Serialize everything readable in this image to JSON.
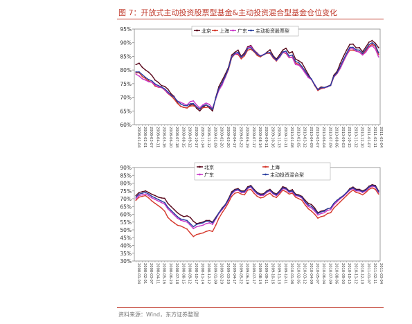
{
  "figure": {
    "title": "图 7：开放式主动投资股票型基金&主动投资混合型基金仓位变化",
    "source": "资料来源：Wind，东方证券整理"
  },
  "dates": [
    "2008-01-04",
    "2008-01-18",
    "2008-02-01",
    "2008-02-15",
    "2008-03-07",
    "2008-03-21",
    "2008-04-11",
    "2008-04-25",
    "2008-05-16",
    "2008-05-30",
    "2008-06-20",
    "2008-07-04",
    "2008-07-18",
    "2008-08-01",
    "2008-08-15",
    "2008-08-29",
    "2008-09-12",
    "2008-09-26",
    "2008-10-17",
    "2008-10-31",
    "2008-11-14",
    "2008-11-28",
    "2008-12-12",
    "2008-12-26",
    "2009-01-09",
    "2009-02-06",
    "2009-02-20",
    "2009-03-06",
    "2009-03-20",
    "2009-04-03",
    "2009-04-17",
    "2009-05-08",
    "2009-05-22",
    "2009-06-05",
    "2009-06-19",
    "2009-07-03",
    "2009-07-17",
    "2009-07-31",
    "2009-08-14",
    "2009-08-28",
    "2009-09-11",
    "2009-09-25",
    "2009-10-16",
    "2009-10-30",
    "2009-11-13",
    "2009-11-27",
    "2009-12-11",
    "2009-12-25",
    "2010-01-08",
    "2010-01-22",
    "2010-02-05",
    "2010-02-26",
    "2010-03-12",
    "2010-03-26",
    "2010-04-09",
    "2010-04-23",
    "2010-05-07",
    "2010-05-21",
    "2010-06-04",
    "2010-06-25",
    "2010-07-09",
    "2010-07-23",
    "2010-08-06",
    "2010-08-20",
    "2010-09-03",
    "2010-09-17",
    "2010-10-15",
    "2010-10-29",
    "2010-11-12",
    "2010-11-26",
    "2010-12-10",
    "2010-12-24",
    "2011-01-07",
    "2011-01-21",
    "2011-02-11",
    "2011-02-25",
    "2011-03-04"
  ],
  "chart_data": [
    {
      "type": "line",
      "ylim": [
        60,
        95
      ],
      "yticks": [
        "60%",
        "65%",
        "70%",
        "75%",
        "80%",
        "85%",
        "90%",
        "95%"
      ],
      "legend": {
        "placement": "top",
        "columns": 4
      },
      "series": [
        {
          "name": "北京",
          "color": "#5b0a1e",
          "values": [
            82,
            82.5,
            81,
            80,
            79.2,
            78,
            76.3,
            75.5,
            74.3,
            74,
            73,
            71.3,
            70.3,
            68,
            66.7,
            66.3,
            66.1,
            67.1,
            67.5,
            66,
            65,
            66.3,
            67.3,
            66.1,
            65,
            70,
            74,
            76.2,
            78.5,
            81,
            85.5,
            86.5,
            87.3,
            85,
            86.3,
            88.5,
            89,
            87.3,
            86.2,
            85,
            85.6,
            86.5,
            87.4,
            85.2,
            84,
            85.6,
            87.3,
            88,
            86.2,
            86.7,
            84,
            83.4,
            82.6,
            80.5,
            78.4,
            76.5,
            74.5,
            72.9,
            73.8,
            73.6,
            74,
            74.5,
            78.1,
            79.5,
            82.4,
            85,
            87.3,
            89.4,
            89.5,
            88.1,
            88.2,
            86.7,
            88.4,
            90.2,
            90.8,
            89.8,
            88.2
          ]
        },
        {
          "name": "上海",
          "color": "#d63a2e",
          "values": [
            79,
            79,
            77.6,
            76.9,
            76,
            75.5,
            74.1,
            73.7,
            73.6,
            72.7,
            71.4,
            70.5,
            69.3,
            67.8,
            66.7,
            66.3,
            66.1,
            66.8,
            66.9,
            66.4,
            65.7,
            66.2,
            66.3,
            66.5,
            66,
            69.4,
            73.1,
            75.1,
            77.3,
            80.2,
            84.5,
            85.8,
            85.7,
            84.1,
            85.2,
            87.3,
            87.6,
            86.7,
            85.3,
            84.8,
            85.6,
            86.1,
            86.1,
            84.4,
            83.3,
            84.7,
            86.4,
            86.1,
            84.5,
            84.8,
            82.6,
            82.1,
            80.7,
            79,
            77.6,
            76.5,
            74.3,
            72.5,
            73.2,
            73.4,
            73.9,
            74.3,
            77.4,
            78.7,
            80.6,
            83.1,
            85.5,
            87.3,
            87.3,
            86.9,
            86.6,
            85.7,
            87.1,
            88.7,
            89.4,
            88.6,
            85.7
          ]
        },
        {
          "name": "广东",
          "color": "#c838c8",
          "values": [
            78.5,
            77.8,
            76.8,
            76.3,
            75.7,
            75.5,
            74.5,
            73.8,
            73.6,
            72.8,
            71.5,
            70.8,
            70.1,
            68.6,
            68.2,
            67.6,
            67.2,
            68.4,
            68.7,
            67.2,
            66.2,
            67.3,
            67.9,
            67.4,
            65.9,
            69.5,
            72.6,
            74.5,
            77.4,
            80.5,
            85,
            85.8,
            86.1,
            84.7,
            85.7,
            88.1,
            88.7,
            87.1,
            86,
            85.2,
            85.7,
            86.3,
            86.3,
            84.7,
            83.5,
            84.6,
            86.4,
            86.3,
            84.6,
            84.6,
            82,
            81.8,
            80.6,
            78.9,
            77.2,
            76.5,
            74.7,
            72.8,
            73.5,
            73.5,
            73.8,
            74.4,
            77.5,
            78.8,
            80.6,
            83.2,
            85.5,
            87.8,
            87.8,
            86.9,
            86.5,
            85.5,
            86.5,
            88.3,
            88.9,
            87.7,
            84.8
          ]
        },
        {
          "name": "主动投资股票型",
          "color": "#2a3fa0",
          "values": [
            79.3,
            79.3,
            78.3,
            77.3,
            76.5,
            76,
            74.9,
            74.3,
            73.8,
            73.1,
            72,
            70.8,
            70,
            68.6,
            67.6,
            67,
            66.9,
            67.6,
            67.7,
            66.5,
            65.7,
            66.8,
            67.3,
            66.6,
            65.6,
            69.8,
            73.3,
            75.3,
            77.8,
            80.6,
            84.8,
            86.1,
            86.5,
            84.7,
            85.7,
            87.9,
            88.2,
            86.9,
            85.8,
            85.1,
            85.6,
            86.3,
            86.4,
            84.8,
            83.6,
            84.9,
            86.6,
            86.9,
            85.1,
            85.5,
            83.1,
            82.7,
            81.3,
            79.6,
            77.9,
            76.7,
            74.5,
            72.8,
            73.5,
            73.6,
            73.9,
            74.4,
            77.7,
            79,
            81.3,
            83.8,
            86.1,
            88.3,
            88.3,
            87.4,
            87.3,
            86.1,
            87.6,
            89.3,
            90,
            89.1,
            86.3
          ]
        }
      ]
    },
    {
      "type": "line",
      "ylim": [
        30,
        90
      ],
      "yticks": [
        "30%",
        "35%",
        "40%",
        "45%",
        "50%",
        "55%",
        "60%",
        "65%",
        "70%",
        "75%",
        "80%",
        "85%",
        "90%"
      ],
      "legend": {
        "placement": "top",
        "columns": 2
      },
      "series": [
        {
          "name": "北京",
          "color": "#5b0a1e",
          "values": [
            72,
            74,
            74.5,
            75,
            74,
            72.8,
            72,
            71,
            70.5,
            70.2,
            67,
            65,
            63,
            61,
            59.5,
            58.5,
            59,
            58,
            55.5,
            54,
            54.5,
            55,
            56,
            56,
            55,
            58,
            61,
            64,
            66.2,
            70,
            74.4,
            76,
            76.5,
            75,
            75,
            77.6,
            78.5,
            76,
            74,
            73,
            73.2,
            75,
            76,
            74,
            73,
            75,
            77.7,
            77,
            75,
            75.8,
            73,
            72.5,
            71.5,
            69,
            67,
            66.2,
            64,
            61,
            62,
            62.5,
            63.5,
            64,
            67,
            69,
            70.6,
            72,
            74,
            76.5,
            77.5,
            76,
            76,
            75,
            76,
            78,
            79,
            78.5,
            75
          ]
        },
        {
          "name": "上海",
          "color": "#d63a2e",
          "values": [
            69,
            71,
            71.5,
            72,
            70.5,
            68.5,
            67,
            65.5,
            64,
            62,
            58,
            56,
            54.5,
            53,
            52.5,
            51.5,
            50.5,
            48,
            45.7,
            47,
            47.5,
            48,
            49,
            49.5,
            49,
            53,
            57.5,
            61,
            64,
            67.5,
            71.5,
            73.5,
            74,
            73,
            72.5,
            75.5,
            76,
            73.5,
            71.5,
            70.5,
            71,
            72.5,
            73.5,
            71.5,
            70.8,
            73,
            75.5,
            74.5,
            73,
            73.5,
            71,
            70,
            69,
            66,
            63.5,
            62,
            60,
            57.5,
            58.5,
            59,
            60.5,
            61,
            64,
            66,
            68,
            70,
            72,
            74,
            75.5,
            74,
            73.5,
            72.5,
            74,
            76,
            77,
            76,
            73
          ]
        },
        {
          "name": "广东",
          "color": "#c838c8",
          "values": [
            70,
            72,
            72.5,
            73,
            72,
            70.5,
            69.5,
            68.5,
            67.5,
            66.5,
            63.5,
            61.5,
            59.5,
            57.5,
            56.2,
            55.5,
            55,
            53,
            50.8,
            52,
            52.5,
            53,
            54,
            54.5,
            53.5,
            57,
            60.5,
            63,
            65.5,
            69,
            73,
            75,
            75.5,
            74,
            74,
            76.5,
            77.5,
            75,
            73,
            72,
            72.2,
            74,
            75,
            73,
            72,
            74,
            76.5,
            76,
            74,
            74.5,
            72,
            71.5,
            70.5,
            67.5,
            65,
            64,
            62,
            59.5,
            60.5,
            61,
            62.5,
            63,
            66,
            68,
            70,
            71.5,
            73.5,
            75.5,
            76.5,
            75,
            75,
            74,
            75,
            77,
            78,
            77.5,
            74
          ]
        },
        {
          "name": "主动投资混合型",
          "color": "#2a3fa0",
          "values": [
            71,
            73,
            73.5,
            74,
            73,
            71.5,
            70.5,
            69.5,
            68.5,
            67.5,
            64.5,
            62.5,
            60.5,
            58.5,
            57,
            56.5,
            56,
            54,
            52,
            53.5,
            54,
            54.5,
            55.5,
            55.5,
            54.5,
            57.5,
            61,
            63.5,
            66,
            69.5,
            73.5,
            75.5,
            76,
            74.5,
            74.5,
            77,
            78,
            75.5,
            73.5,
            72.5,
            72.7,
            74.5,
            75.5,
            73.5,
            72.5,
            74.5,
            77,
            76.5,
            74.5,
            75,
            72.5,
            72,
            71,
            68,
            66,
            65,
            63,
            60.5,
            61.5,
            62,
            63.5,
            64,
            67,
            69,
            70.5,
            72,
            74,
            76,
            77,
            75.5,
            75.5,
            74.5,
            75.5,
            77.5,
            78.5,
            78,
            74.5
          ]
        }
      ]
    }
  ]
}
